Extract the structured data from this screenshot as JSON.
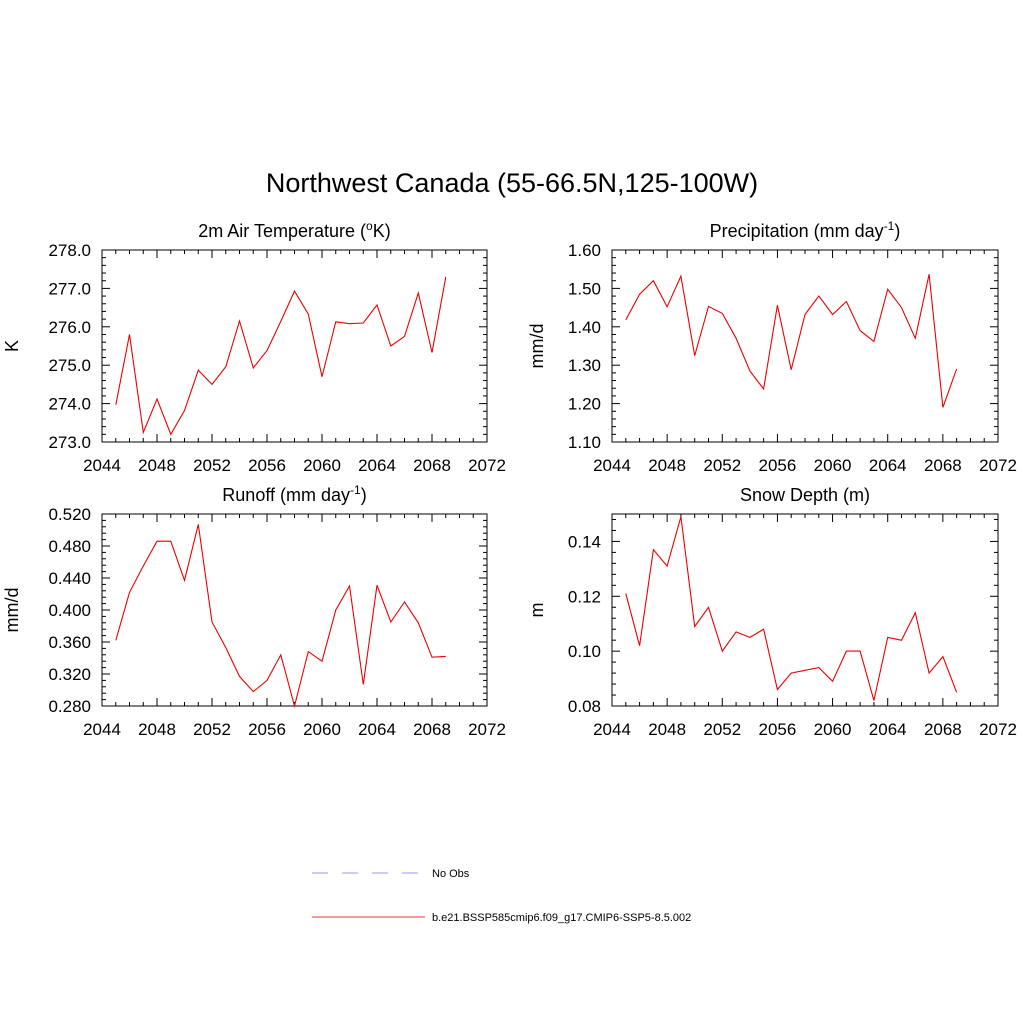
{
  "title": "Northwest Canada (55-66.5N,125-100W)",
  "chart_data": [
    {
      "type": "line",
      "title": "2m Air Temperature (",
      "title_sup": "o",
      "title_after": "K)",
      "ylabel": "K",
      "xlim": [
        2044,
        2072
      ],
      "ylim": [
        273.0,
        278.0
      ],
      "xticks": [
        2044,
        2048,
        2052,
        2056,
        2060,
        2064,
        2068,
        2072
      ],
      "yticks": [
        "273.0",
        "274.0",
        "275.0",
        "276.0",
        "277.0",
        "278.0"
      ],
      "x": [
        2045,
        2046,
        2047,
        2048,
        2049,
        2050,
        2051,
        2052,
        2053,
        2054,
        2055,
        2056,
        2057,
        2058,
        2059,
        2060,
        2061,
        2062,
        2063,
        2064,
        2065,
        2066,
        2067,
        2068,
        2069
      ],
      "series": [
        {
          "values": [
            273.97,
            275.8,
            273.25,
            274.12,
            273.2,
            273.82,
            274.87,
            274.5,
            274.96,
            276.15,
            274.93,
            275.38,
            276.14,
            276.93,
            276.33,
            274.7,
            276.13,
            276.08,
            276.1,
            276.57,
            275.5,
            275.75,
            276.88,
            275.33,
            277.3
          ]
        }
      ]
    },
    {
      "type": "line",
      "title": "Precipitation (mm day",
      "title_sup": "-1",
      "title_after": ")",
      "ylabel": "mm/d",
      "xlim": [
        2044,
        2072
      ],
      "ylim": [
        1.1,
        1.6
      ],
      "xticks": [
        2044,
        2048,
        2052,
        2056,
        2060,
        2064,
        2068,
        2072
      ],
      "yticks": [
        "1.10",
        "1.20",
        "1.30",
        "1.40",
        "1.50",
        "1.60"
      ],
      "x": [
        2045,
        2046,
        2047,
        2048,
        2049,
        2050,
        2051,
        2052,
        2053,
        2054,
        2055,
        2056,
        2057,
        2058,
        2059,
        2060,
        2061,
        2062,
        2063,
        2064,
        2065,
        2066,
        2067,
        2068,
        2069
      ],
      "series": [
        {
          "values": [
            1.418,
            1.485,
            1.52,
            1.452,
            1.532,
            1.325,
            1.453,
            1.435,
            1.37,
            1.285,
            1.238,
            1.456,
            1.288,
            1.432,
            1.48,
            1.432,
            1.466,
            1.39,
            1.362,
            1.498,
            1.45,
            1.37,
            1.537,
            1.19,
            1.29
          ]
        }
      ]
    },
    {
      "type": "line",
      "title": "Runoff (mm day",
      "title_sup": "-1",
      "title_after": ")",
      "ylabel": "mm/d",
      "xlim": [
        2044,
        2072
      ],
      "ylim": [
        0.28,
        0.52
      ],
      "xticks": [
        2044,
        2048,
        2052,
        2056,
        2060,
        2064,
        2068,
        2072
      ],
      "yticks": [
        "0.280",
        "0.320",
        "0.360",
        "0.400",
        "0.440",
        "0.480",
        "0.520"
      ],
      "x": [
        2045,
        2046,
        2047,
        2048,
        2049,
        2050,
        2051,
        2052,
        2053,
        2054,
        2055,
        2056,
        2057,
        2058,
        2059,
        2060,
        2061,
        2062,
        2063,
        2064,
        2065,
        2066,
        2067,
        2068,
        2069
      ],
      "series": [
        {
          "values": [
            0.362,
            0.422,
            0.455,
            0.486,
            0.486,
            0.437,
            0.507,
            0.385,
            0.353,
            0.317,
            0.298,
            0.312,
            0.344,
            0.28,
            0.348,
            0.336,
            0.4,
            0.43,
            0.307,
            0.431,
            0.385,
            0.41,
            0.384,
            0.341,
            0.342
          ]
        }
      ]
    },
    {
      "type": "line",
      "title": "Snow Depth (m)",
      "title_sup": "",
      "title_after": "",
      "ylabel": "m",
      "xlim": [
        2044,
        2072
      ],
      "ylim": [
        0.08,
        0.15
      ],
      "xticks": [
        2044,
        2048,
        2052,
        2056,
        2060,
        2064,
        2068,
        2072
      ],
      "yticks": [
        "0.08",
        "0.10",
        "0.12",
        "0.14"
      ],
      "ytick_values": [
        0.08,
        0.1,
        0.12,
        0.14
      ],
      "x": [
        2045,
        2046,
        2047,
        2048,
        2049,
        2050,
        2051,
        2052,
        2053,
        2054,
        2055,
        2056,
        2057,
        2058,
        2059,
        2060,
        2061,
        2062,
        2063,
        2064,
        2065,
        2066,
        2067,
        2068,
        2069
      ],
      "series": [
        {
          "values": [
            0.121,
            0.102,
            0.137,
            0.131,
            0.149,
            0.109,
            0.116,
            0.1,
            0.107,
            0.105,
            0.108,
            0.086,
            0.092,
            0.093,
            0.094,
            0.089,
            0.1,
            0.1,
            0.082,
            0.105,
            0.104,
            0.114,
            0.092,
            0.098,
            0.085
          ]
        }
      ]
    }
  ],
  "legend": [
    {
      "label": "No Obs",
      "style": "dashed",
      "color": "#9999ee"
    },
    {
      "label": "b.e21.BSSP585cmip6.f09_g17.CMIP6-SSP5-8.5.002",
      "style": "solid",
      "color": "#ee3333"
    }
  ],
  "line_color": "#ee0000"
}
